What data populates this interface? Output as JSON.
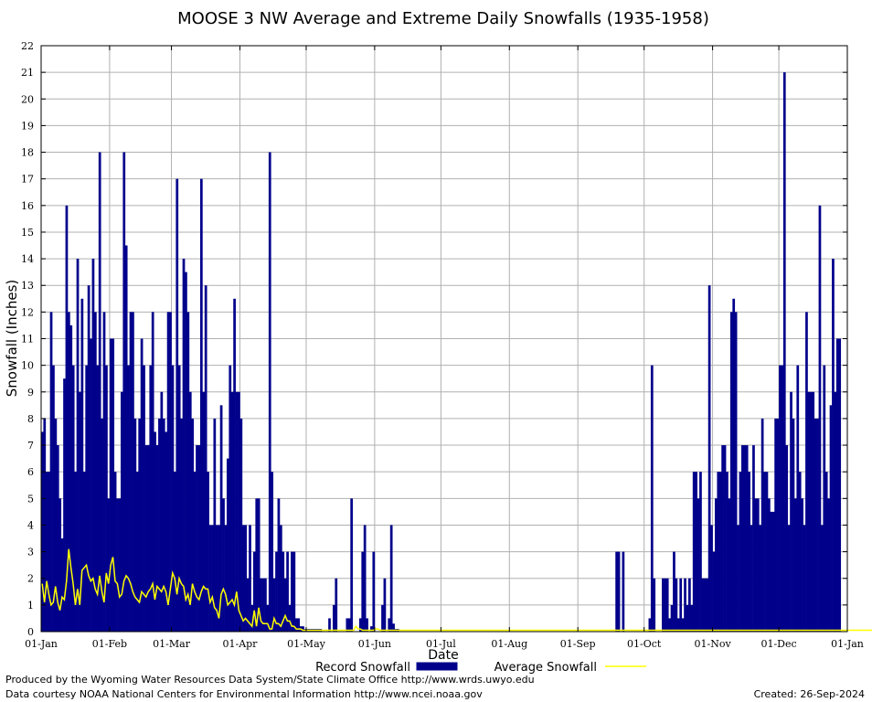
{
  "chart_data": {
    "type": "bar",
    "title": "MOOSE 3 NW Average and Extreme Daily Snowfalls (1935-1958)",
    "xlabel": "Date",
    "ylabel": "Snowfall (Inches)",
    "ylim": [
      0,
      22
    ],
    "yticks": [
      "0",
      "1",
      "2",
      "3",
      "4",
      "5",
      "6",
      "7",
      "8",
      "9",
      "10",
      "11",
      "12",
      "13",
      "14",
      "15",
      "16",
      "17",
      "18",
      "19",
      "20",
      "21",
      "22"
    ],
    "xticks": [
      "01-Jan",
      "01-Feb",
      "01-Mar",
      "01-Apr",
      "01-May",
      "01-Jun",
      "01-Jul",
      "01-Aug",
      "01-Sep",
      "01-Oct",
      "01-Nov",
      "01-Dec",
      "01-Jan"
    ],
    "xtick_days": [
      0,
      31,
      59,
      90,
      120,
      151,
      181,
      212,
      243,
      273,
      304,
      334,
      365
    ],
    "grid": true,
    "bar_color": "#00008b",
    "line_color": "#ffff00",
    "series": [
      {
        "name": "Record Snowfall",
        "kind": "bar",
        "values": [
          7.5,
          8,
          6,
          6,
          12,
          10,
          8,
          7,
          5,
          3.5,
          9.5,
          16,
          12,
          11.5,
          10,
          6,
          14,
          9,
          12.5,
          6,
          10,
          13,
          11,
          14,
          12,
          10,
          18,
          8,
          12,
          10,
          5,
          11,
          11,
          6,
          5,
          5,
          9,
          18,
          14.5,
          10,
          12,
          12,
          8,
          6,
          8,
          11,
          10,
          7,
          7,
          10,
          12,
          7.5,
          7,
          8,
          9,
          8,
          7.5,
          12,
          12,
          10,
          6,
          17,
          10,
          8,
          14,
          13.5,
          12,
          9,
          8,
          6,
          7,
          7,
          17,
          9,
          13,
          6,
          4,
          4,
          8,
          4,
          4,
          8.5,
          5,
          4,
          6.5,
          10,
          9,
          12.5,
          9,
          9,
          8,
          4,
          4,
          2,
          4,
          1,
          3,
          5,
          5,
          2,
          2,
          2,
          1,
          18,
          6,
          2,
          3,
          5,
          4,
          3,
          2,
          3,
          1,
          3,
          3,
          0.5,
          0.5,
          0.2,
          0.2,
          0.1,
          0.1,
          0.1,
          0.1,
          0.1,
          0.1,
          0.1,
          0.1,
          0,
          0,
          0,
          0.5,
          0,
          1,
          2,
          0,
          0,
          0,
          0,
          0.5,
          0.5,
          5,
          0,
          0,
          0,
          0.5,
          3,
          4,
          0.5,
          0,
          0.2,
          3,
          0,
          0,
          0,
          1,
          2,
          0,
          0.5,
          4,
          0.3,
          0.1,
          0.1,
          0,
          0,
          0,
          0,
          0,
          0,
          0,
          0,
          0,
          0,
          0,
          0,
          0,
          0,
          0,
          0,
          0,
          0,
          0,
          0,
          0,
          0,
          0,
          0,
          0,
          0,
          0,
          0,
          0,
          0,
          0,
          0,
          0,
          0,
          0,
          0,
          0,
          0,
          0,
          0,
          0,
          0,
          0,
          0,
          0,
          0,
          0,
          0,
          0,
          0,
          0,
          0,
          0,
          0,
          0,
          0,
          0,
          0,
          0,
          0,
          0,
          0,
          0,
          0,
          0,
          0,
          0,
          0,
          0,
          0,
          0,
          0,
          0,
          0,
          0,
          0,
          0,
          0,
          0,
          0,
          0,
          0,
          0,
          0,
          0,
          0,
          0,
          0,
          0,
          0,
          0,
          0,
          0,
          0,
          0,
          0,
          0,
          0,
          3,
          3,
          0,
          3,
          0,
          0,
          0,
          0,
          0,
          0,
          0,
          0,
          0,
          0,
          0,
          0.5,
          10,
          2,
          0,
          0,
          0,
          2,
          2,
          2,
          0.5,
          1,
          3,
          2,
          0.5,
          2,
          0.5,
          2,
          1,
          2,
          1,
          6,
          6,
          5,
          6,
          2,
          2,
          2,
          13,
          4,
          3,
          5,
          6,
          6,
          7,
          7,
          6,
          5,
          12,
          12.5,
          12,
          4,
          6,
          7,
          7,
          7,
          6,
          4,
          7,
          5,
          5,
          4,
          8,
          6,
          6,
          5,
          4.5,
          4.5,
          8,
          8,
          10,
          10,
          21,
          7,
          4,
          9,
          8,
          5,
          10,
          6,
          5,
          4,
          12,
          9,
          9,
          9,
          8,
          8,
          16,
          4,
          10,
          6,
          5,
          8.5,
          14,
          9,
          11,
          11
        ]
      },
      {
        "name": "Average Snowfall",
        "kind": "line",
        "values": [
          1.8,
          1.1,
          1.9,
          1.4,
          1.0,
          1.1,
          1.7,
          1.1,
          0.8,
          1.3,
          1.2,
          1.9,
          3.1,
          2.4,
          1.8,
          1.0,
          1.6,
          1.0,
          2.3,
          2.4,
          2.5,
          2.1,
          1.9,
          2.0,
          1.6,
          1.4,
          2.1,
          1.5,
          1.1,
          2.2,
          1.8,
          2.5,
          2.8,
          1.9,
          1.8,
          1.3,
          1.4,
          1.9,
          2.1,
          2.0,
          1.8,
          1.5,
          1.3,
          1.2,
          1.1,
          1.5,
          1.4,
          1.3,
          1.5,
          1.6,
          1.8,
          1.2,
          1.7,
          1.6,
          1.5,
          1.7,
          1.5,
          1.0,
          1.6,
          2.2,
          2.0,
          1.4,
          2.0,
          1.8,
          1.7,
          1.2,
          1.4,
          1.0,
          1.8,
          1.5,
          1.3,
          1.2,
          1.5,
          1.7,
          1.6,
          1.6,
          1.1,
          1.3,
          0.9,
          0.8,
          0.5,
          1.4,
          1.6,
          1.4,
          1.0,
          1.1,
          1.2,
          1.0,
          1.5,
          0.8,
          0.6,
          0.4,
          0.5,
          0.4,
          0.3,
          0.2,
          0.8,
          0.2,
          0.9,
          0.4,
          0.3,
          0.3,
          0.3,
          0.1,
          0.1,
          0.5,
          0.3,
          0.3,
          0.2,
          0.4,
          0.6,
          0.4,
          0.4,
          0.2,
          0.2,
          0.1,
          0.1,
          0.1,
          0.05,
          0.05,
          0.05,
          0.05,
          0.05,
          0.05,
          0.05,
          0.05,
          0.05,
          0.05,
          0.05,
          0.05,
          0.05,
          0.05,
          0.05,
          0.05,
          0.05,
          0.05,
          0.05,
          0.05,
          0.05,
          0.05,
          0.05,
          0.05,
          0.2,
          0.1,
          0.1,
          0.05,
          0.05,
          0.05,
          0.05,
          0.05,
          0.05,
          0.1,
          0.1,
          0.05,
          0.05,
          0.05,
          0.05,
          0.05,
          0.05,
          0.05,
          0.05,
          0.05,
          0.05,
          0.05,
          0.05,
          0.05,
          0.05,
          0.05,
          0.05,
          0.05,
          0.05,
          0.05,
          0.05,
          0.05,
          0.05,
          0.05,
          0.05,
          0.05,
          0.05,
          0.05,
          0.05,
          0.05,
          0.05,
          0.05,
          0.05,
          0.05,
          0.05,
          0.05,
          0.05,
          0.05,
          0.05,
          0.05,
          0.05,
          0.05,
          0.05,
          0.05,
          0.05,
          0.05,
          0.05,
          0.05,
          0.05,
          0.05,
          0.05,
          0.05,
          0.05,
          0.05,
          0.05,
          0.05,
          0.05,
          0.05,
          0.05,
          0.05,
          0.05,
          0.05,
          0.05,
          0.05,
          0.05,
          0.05,
          0.05,
          0.05,
          0.05,
          0.05,
          0.05,
          0.05,
          0.05,
          0.05,
          0.05,
          0.05,
          0.05,
          0.05,
          0.05,
          0.05,
          0.05,
          0.05,
          0.05,
          0.05,
          0.05,
          0.05,
          0.05,
          0.05,
          0.05,
          0.05,
          0.05,
          0.05,
          0.05,
          0.05,
          0.05,
          0.05,
          0.05,
          0.05,
          0.05,
          0.05,
          0.05,
          0.05,
          0.05,
          0.05,
          0.05,
          0.05,
          0.05,
          0.05,
          0.05,
          0.05,
          0.05,
          0.05,
          0.05,
          0.05,
          0.05,
          0.05,
          0.05,
          0.05,
          0.05,
          0.05,
          0.05,
          0.05,
          0.05,
          0.05,
          0.05,
          0.05,
          0.05,
          0.05,
          0.05,
          0.05,
          0.05,
          0.05,
          0.05,
          0.05,
          0.05,
          0.05,
          0.05,
          0.05,
          0.05,
          0.05,
          0.05,
          0.05,
          0.05,
          0.05,
          0.05,
          0.05,
          0.05,
          0.05,
          0.05,
          0.05,
          0.05,
          0.05,
          0.05,
          0.05,
          0.05,
          0.05,
          0.05,
          0.05,
          0.05,
          0.05,
          0.05,
          0.05,
          0.05,
          0.05,
          0.05,
          0.05,
          0.05,
          0.05,
          0.05,
          0.05,
          0.05,
          0.05,
          0.05,
          0.05,
          0.05,
          0.05,
          0.05,
          0.05,
          0.05,
          0.05,
          0.05,
          0.05,
          0.05,
          0.05,
          0.05,
          0.05,
          0.05,
          0.05,
          0.05,
          0.05,
          0.05,
          0.05,
          0.05,
          0.05,
          0.05,
          0.05,
          0.05,
          0.05,
          0.05,
          0.05,
          0.05,
          0.05,
          0.05,
          0.05,
          0.05,
          0.05,
          0.05,
          0.05,
          0.05,
          0.05,
          0.05,
          0.05,
          0.05,
          0.05,
          0.05,
          0.05,
          0.05,
          0.05,
          0.05,
          0.05,
          0.05,
          0.05,
          0.05,
          0.05,
          0.05,
          0.05,
          0.05,
          0.05
        ]
      }
    ],
    "legend_position": "bottom"
  },
  "footer": {
    "produced_by": "Produced by the Wyoming Water Resources Data System/State Climate Office http://www.wrds.uwyo.edu",
    "data_courtesy": "Data courtesy NOAA National Centers for Environmental Information http://www.ncei.noaa.gov",
    "created": "Created:  26-Sep-2024"
  }
}
